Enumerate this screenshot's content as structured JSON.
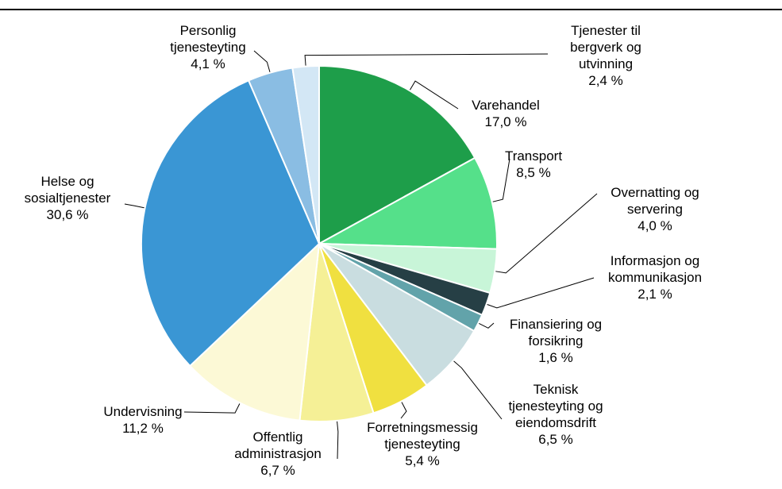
{
  "chart_data": {
    "type": "pie",
    "categories": [
      "Varehandel",
      "Transport",
      "Overnatting og servering",
      "Informasjon og kommunikasjon",
      "Finansiering og forsikring",
      "Teknisk tjenesteyting og eiendomsdrift",
      "Forretningsmessig tjenesteyting",
      "Offentlig administrasjon",
      "Undervisning",
      "Helse og sosialtjenester",
      "Personlig tjenesteyting",
      "Tjenester til bergverk og utvinning"
    ],
    "values": [
      17.0,
      8.5,
      4.0,
      2.1,
      1.6,
      6.5,
      5.4,
      6.7,
      11.2,
      30.6,
      4.1,
      2.4
    ],
    "value_labels": [
      "17,0 %",
      "8,5 %",
      "4,0 %",
      "2,1 %",
      "1,6 %",
      "6,5 %",
      "5,4 %",
      "6,7 %",
      "11,2 %",
      "30,6 %",
      "4,1 %",
      "2,4 %"
    ],
    "colors": [
      "#1e9e4a",
      "#55e08a",
      "#c8f5d8",
      "#263f45",
      "#62a3aa",
      "#c9dde0",
      "#f0e040",
      "#f5f096",
      "#fcf9d6",
      "#3a96d4",
      "#8abde3",
      "#d3e7f5"
    ]
  }
}
